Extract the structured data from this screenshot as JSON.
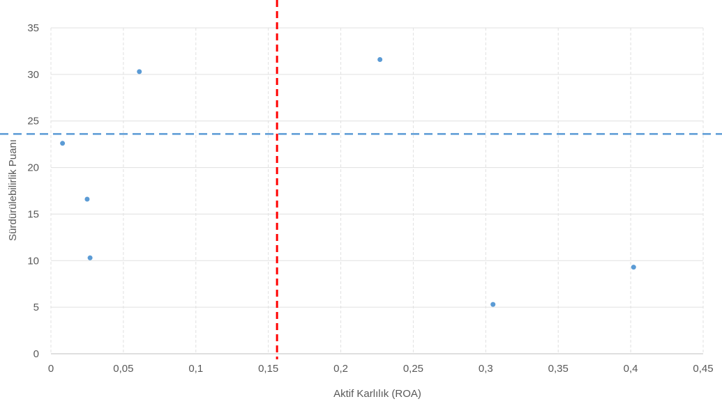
{
  "chart_data": {
    "type": "scatter",
    "title": "",
    "xlabel": "Aktif Karlılık (ROA)",
    "ylabel": "Sürdürülebilirlik Puanı",
    "xlim": [
      0,
      0.45
    ],
    "ylim": [
      0,
      35
    ],
    "x_ticks": [
      0,
      0.05,
      0.1,
      0.15,
      0.2,
      0.25,
      0.3,
      0.35,
      0.4,
      0.45
    ],
    "y_ticks": [
      0,
      5,
      10,
      15,
      20,
      25,
      30,
      35
    ],
    "x_tick_labels": [
      "0",
      "0,05",
      "0,1",
      "0,15",
      "0,2",
      "0,25",
      "0,3",
      "0,35",
      "0,4",
      "0,45"
    ],
    "y_tick_labels": [
      "0",
      "5",
      "10",
      "15",
      "20",
      "25",
      "30",
      "35"
    ],
    "grid": true,
    "legend": "none",
    "series": [
      {
        "color": "#5b9bd5",
        "points": [
          {
            "x": 0.008,
            "y": 22.6
          },
          {
            "x": 0.025,
            "y": 16.6
          },
          {
            "x": 0.027,
            "y": 10.3
          },
          {
            "x": 0.061,
            "y": 30.3
          },
          {
            "x": 0.227,
            "y": 31.6
          },
          {
            "x": 0.305,
            "y": 5.3
          },
          {
            "x": 0.402,
            "y": 9.3
          }
        ]
      }
    ],
    "reference_lines": [
      {
        "orientation": "vertical",
        "x": 0.156,
        "color": "#ff0000",
        "style": "dashed"
      },
      {
        "orientation": "horizontal",
        "y": 23.6,
        "color": "#5b9bd5",
        "style": "dashed"
      }
    ]
  }
}
